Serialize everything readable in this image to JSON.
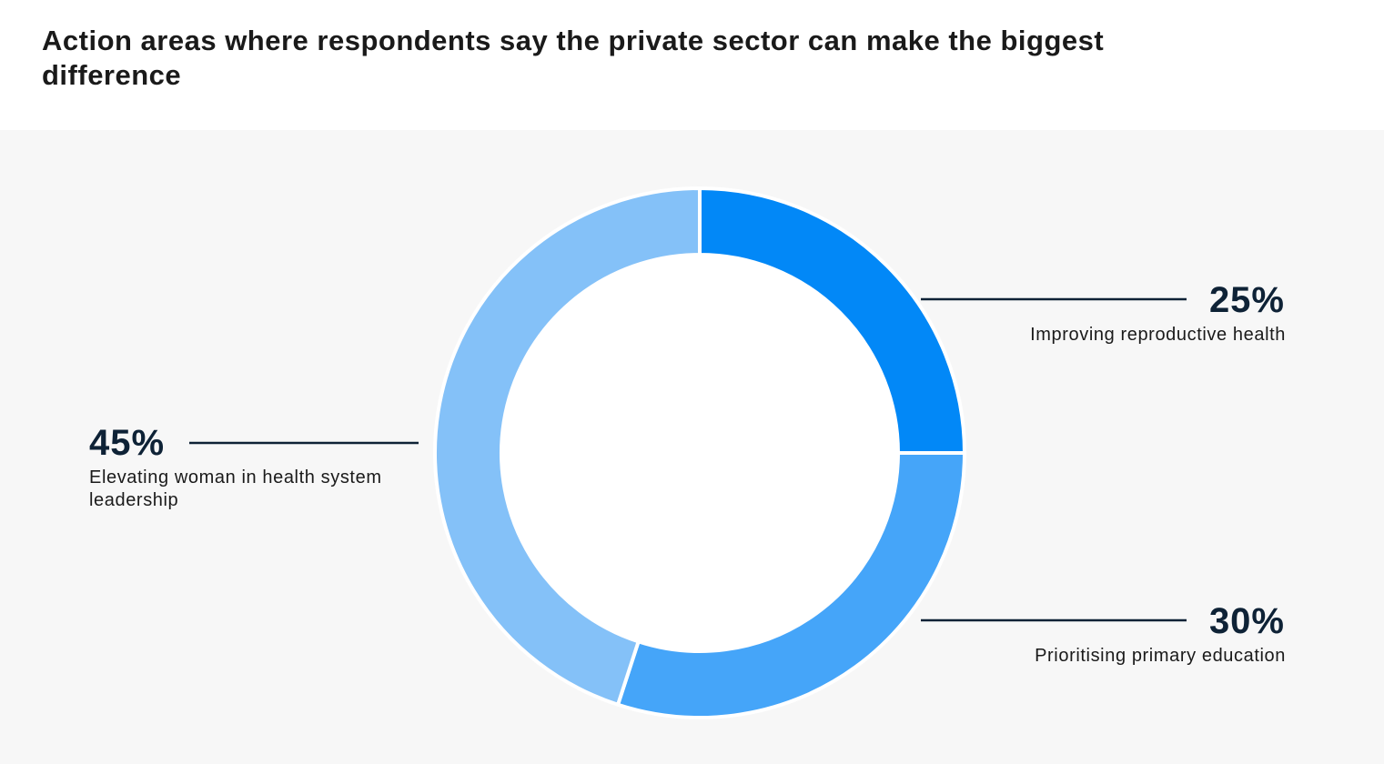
{
  "chart_data": {
    "type": "pie",
    "donut": true,
    "title": "Action areas where respondents say the private sector can make the biggest difference",
    "slices": [
      {
        "label": "Improving reproductive health",
        "value": 25,
        "display": "25%",
        "color": "#0288f7",
        "label_side": "right"
      },
      {
        "label": "Prioritising primary education",
        "value": 30,
        "display": "30%",
        "color": "#45a5f9",
        "label_side": "right"
      },
      {
        "label": "Elevating woman in health system leadership",
        "value": 45,
        "display": "45%",
        "color": "#84c1f8",
        "label_side": "left"
      }
    ],
    "legend": "none"
  }
}
